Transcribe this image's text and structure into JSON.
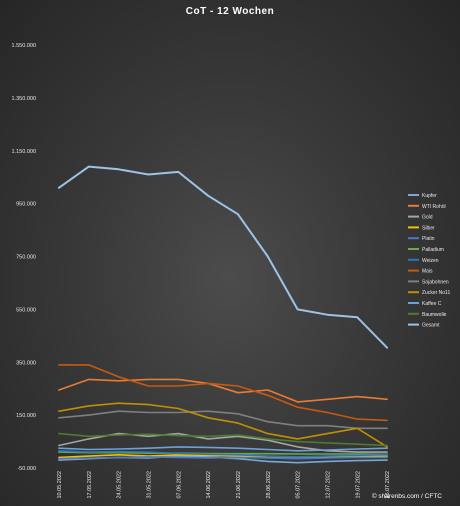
{
  "chart_data": {
    "type": "line",
    "title": "CoT - 12 Wochen",
    "source": "© sharenbs.com / CFTC",
    "ylim": [
      -50000,
      1550000
    ],
    "yticks": [
      {
        "value": 1550000,
        "label": "1.550.000"
      },
      {
        "value": 1350000,
        "label": "1.350.000"
      },
      {
        "value": 1150000,
        "label": "1.150.000"
      },
      {
        "value": 950000,
        "label": "950.000"
      },
      {
        "value": 750000,
        "label": "750.000"
      },
      {
        "value": 550000,
        "label": "550.000"
      },
      {
        "value": 350000,
        "label": "350.000"
      },
      {
        "value": 150000,
        "label": "150.000"
      },
      {
        "value": -50000,
        "label": "-50.000"
      }
    ],
    "categories": [
      "10.05.2022",
      "17.05.2022",
      "24.05.2022",
      "31.05.2022",
      "07.06.2022",
      "14.06.2022",
      "21.06.2022",
      "28.06.2022",
      "05.07.2022",
      "12.07.2022",
      "19.07.2022",
      "26.07.2022"
    ],
    "legend_position": "right",
    "series": [
      {
        "name": "Kupfer",
        "color": "#7ba7d4",
        "values": [
          -20000,
          -15000,
          -10000,
          -12000,
          -5000,
          -8000,
          -15000,
          -25000,
          -30000,
          -25000,
          -22000,
          -20000
        ]
      },
      {
        "name": "WTI Rohöl",
        "color": "#e87b35",
        "values": [
          245000,
          285000,
          280000,
          285000,
          285000,
          270000,
          235000,
          245000,
          200000,
          210000,
          220000,
          210000
        ]
      },
      {
        "name": "Gold",
        "color": "#a5a5a5",
        "values": [
          35000,
          60000,
          80000,
          70000,
          80000,
          60000,
          70000,
          55000,
          30000,
          15000,
          10000,
          10000
        ]
      },
      {
        "name": "Silber",
        "color": "#f2c200",
        "values": [
          -10000,
          -5000,
          0,
          -5000,
          0,
          -2000,
          -5000,
          -10000,
          -10000,
          -8000,
          -6000,
          -5000
        ]
      },
      {
        "name": "Platin",
        "color": "#4a78c2",
        "values": [
          -15000,
          -12000,
          -10000,
          -8000,
          -10000,
          -12000,
          -10000,
          -12000,
          -15000,
          -12000,
          -10000,
          -10000
        ]
      },
      {
        "name": "Palladium",
        "color": "#6aa84f",
        "values": [
          10000,
          8000,
          8000,
          6000,
          6000,
          5000,
          4000,
          4000,
          3000,
          3000,
          3000,
          2000
        ]
      },
      {
        "name": "Weizen",
        "color": "#2e75b6",
        "values": [
          15000,
          10000,
          12000,
          10000,
          5000,
          2000,
          0,
          -5000,
          -8000,
          -5000,
          -2000,
          0
        ]
      },
      {
        "name": "Mais",
        "color": "#c55a11",
        "values": [
          340000,
          340000,
          295000,
          260000,
          260000,
          270000,
          260000,
          225000,
          180000,
          160000,
          135000,
          130000
        ]
      },
      {
        "name": "Sojabohnen",
        "color": "#7f7f7f",
        "values": [
          140000,
          150000,
          165000,
          160000,
          160000,
          165000,
          155000,
          125000,
          110000,
          110000,
          100000,
          100000
        ]
      },
      {
        "name": "Zucker No11",
        "color": "#bf9000",
        "values": [
          165000,
          185000,
          195000,
          190000,
          175000,
          140000,
          120000,
          80000,
          60000,
          80000,
          100000,
          30000
        ]
      },
      {
        "name": "Kaffee C",
        "color": "#6fa0d8",
        "values": [
          25000,
          20000,
          22000,
          25000,
          30000,
          28000,
          25000,
          20000,
          15000,
          18000,
          22000,
          25000
        ]
      },
      {
        "name": "Baumwolle",
        "color": "#4e7a31",
        "values": [
          80000,
          70000,
          75000,
          78000,
          72000,
          70000,
          75000,
          60000,
          50000,
          45000,
          40000,
          35000
        ]
      },
      {
        "name": "Gesamt",
        "color": "#9dc3e6",
        "values": [
          1010000,
          1090000,
          1080000,
          1060000,
          1070000,
          980000,
          910000,
          750000,
          550000,
          530000,
          520000,
          405000
        ]
      }
    ]
  }
}
